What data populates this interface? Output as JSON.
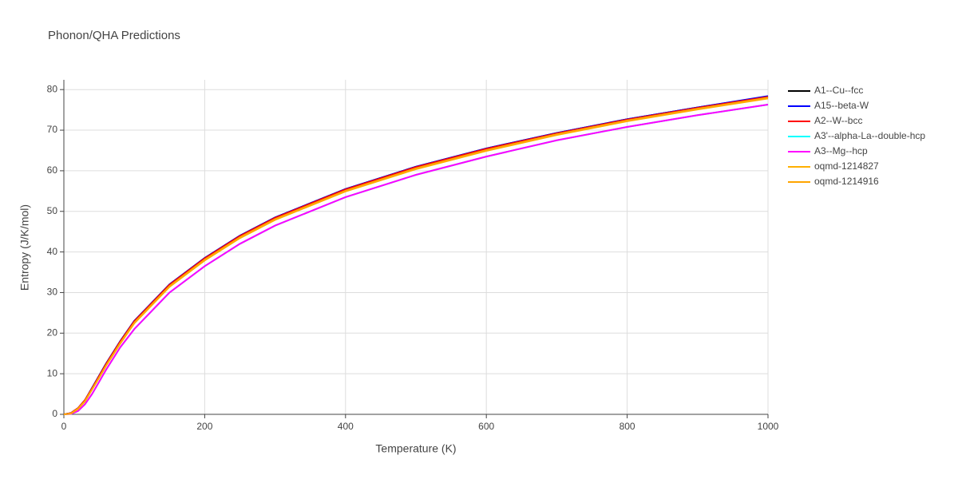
{
  "chart_data": {
    "type": "line",
    "title": "Phonon/QHA Predictions",
    "x_label": "Temperature (K)",
    "y_label": "Entropy (J/K/mol)",
    "x": [
      0,
      10,
      20,
      30,
      40,
      50,
      60,
      80,
      100,
      150,
      200,
      250,
      300,
      400,
      500,
      600,
      700,
      800,
      900,
      1000
    ],
    "series": [
      {
        "name": "A1--Cu--fcc",
        "color": "#000000",
        "values": [
          0,
          0.3,
          1.5,
          3.5,
          6.5,
          9.5,
          12.5,
          18,
          23,
          32,
          38.5,
          44,
          48.5,
          55.5,
          61,
          65.5,
          69.3,
          72.7,
          75.6,
          78.3
        ]
      },
      {
        "name": "A15--beta-W",
        "color": "#0000ff",
        "values": [
          0,
          0.3,
          1.5,
          3.5,
          6.5,
          9.5,
          12.5,
          18,
          23,
          32,
          38.5,
          44,
          48.5,
          55.5,
          61,
          65.5,
          69.3,
          72.7,
          75.6,
          78.4
        ]
      },
      {
        "name": "A2--W--bcc",
        "color": "#ff0000",
        "values": [
          0,
          0.3,
          1.5,
          3.5,
          6.4,
          9.4,
          12.4,
          17.9,
          22.9,
          31.9,
          38.4,
          43.9,
          48.4,
          55.4,
          60.9,
          65.4,
          69.2,
          72.6,
          75.5,
          78.2
        ]
      },
      {
        "name": "A3'--alpha-La--double-hcp",
        "color": "#00ffff",
        "values": [
          0,
          0.1,
          0.8,
          2.5,
          5,
          8,
          11,
          16.5,
          21,
          30,
          36.5,
          42,
          46.5,
          53.5,
          59,
          63.5,
          67.5,
          70.8,
          73.7,
          76.3
        ]
      },
      {
        "name": "A3--Mg--hcp",
        "color": "#ff00ff",
        "values": [
          0,
          0.1,
          0.8,
          2.5,
          5,
          8,
          11,
          16.5,
          21,
          30,
          36.5,
          42,
          46.5,
          53.5,
          59,
          63.5,
          67.5,
          70.8,
          73.7,
          76.3
        ]
      },
      {
        "name": "oqmd-1214827",
        "color": "#ffb000",
        "values": [
          0,
          0.2,
          1.3,
          3.2,
          6.1,
          9,
          12,
          17.4,
          22.4,
          31.4,
          37.9,
          43.4,
          47.9,
          54.9,
          60.4,
          64.9,
          68.8,
          72.2,
          75.1,
          77.8
        ]
      },
      {
        "name": "oqmd-1214916",
        "color": "#ffa500",
        "values": [
          0,
          0.2,
          1.4,
          3.3,
          6.2,
          9.1,
          12.1,
          17.6,
          22.6,
          31.6,
          38.1,
          43.6,
          48.1,
          55.1,
          60.6,
          65.1,
          69,
          72.4,
          75.3,
          78
        ]
      }
    ],
    "xlim": [
      0,
      1000
    ],
    "xticks": [
      0,
      200,
      400,
      600,
      800,
      1000
    ],
    "ylim": [
      0,
      82.4
    ],
    "yticks": [
      0,
      10,
      20,
      30,
      40,
      50,
      60,
      70,
      80
    ],
    "grid": true,
    "legend": "right"
  }
}
